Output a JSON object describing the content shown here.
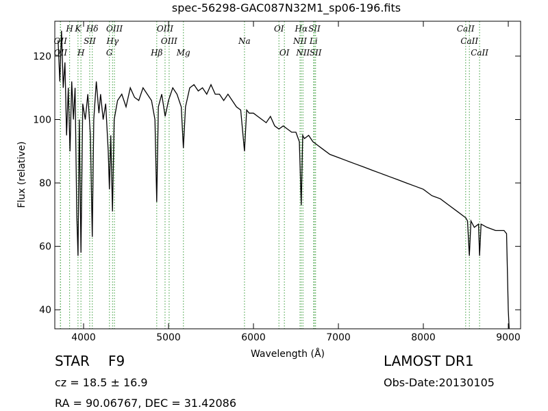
{
  "chart_data": {
    "type": "line",
    "title": "spec-56298-GAC087N32M1_sp06-196.fits",
    "x_label": "Wavelength (Å)",
    "y_label": "Flux (relative)",
    "color": "#000000",
    "annotation_color": "#55aa55",
    "xlim": [
      3661,
      9145
    ],
    "ylim": [
      34,
      131
    ],
    "xticks": [
      4000,
      5000,
      6000,
      7000,
      8000,
      9000
    ],
    "yticks": [
      40,
      60,
      80,
      100,
      120
    ],
    "x": [
      3700,
      3720,
      3740,
      3760,
      3780,
      3800,
      3820,
      3840,
      3860,
      3880,
      3900,
      3920,
      3934,
      3950,
      3969,
      3990,
      4020,
      4050,
      4080,
      4102,
      4120,
      4150,
      4180,
      4200,
      4230,
      4260,
      4290,
      4304,
      4320,
      4340,
      4360,
      4400,
      4450,
      4500,
      4550,
      4600,
      4650,
      4700,
      4750,
      4800,
      4840,
      4861,
      4880,
      4920,
      4960,
      5000,
      5050,
      5100,
      5150,
      5175,
      5200,
      5250,
      5300,
      5350,
      5400,
      5450,
      5500,
      5550,
      5600,
      5650,
      5700,
      5750,
      5800,
      5850,
      5894,
      5920,
      5950,
      6000,
      6050,
      6100,
      6150,
      6200,
      6250,
      6300,
      6350,
      6400,
      6450,
      6500,
      6540,
      6563,
      6580,
      6600,
      6650,
      6700,
      6750,
      6800,
      6850,
      6900,
      7000,
      7100,
      7200,
      7300,
      7400,
      7500,
      7600,
      7700,
      7800,
      7900,
      8000,
      8100,
      8200,
      8300,
      8400,
      8500,
      8520,
      8542,
      8560,
      8600,
      8650,
      8662,
      8680,
      8750,
      8850,
      8950,
      8980,
      9000,
      9010
    ],
    "values": [
      125,
      112,
      128,
      110,
      118,
      95,
      110,
      90,
      112,
      100,
      110,
      70,
      57,
      100,
      58,
      105,
      100,
      108,
      95,
      63,
      100,
      112,
      102,
      108,
      100,
      105,
      90,
      78,
      95,
      71,
      100,
      106,
      108,
      104,
      110,
      107,
      106,
      110,
      108,
      106,
      100,
      74,
      104,
      108,
      101,
      106,
      110,
      108,
      104,
      91,
      104,
      110,
      111,
      109,
      110,
      108,
      111,
      108,
      108,
      106,
      108,
      106,
      104,
      103,
      90,
      103,
      102,
      102,
      101,
      100,
      99,
      101,
      98,
      97,
      98,
      97,
      96,
      96,
      93,
      73,
      95,
      94,
      95,
      93,
      92,
      91,
      90,
      89,
      88,
      87,
      86,
      85,
      84,
      83,
      82,
      81,
      80,
      79,
      78,
      76,
      75,
      73,
      71,
      69,
      68,
      57,
      68,
      66,
      67,
      57,
      67,
      66,
      65,
      65,
      64,
      40,
      34
    ],
    "spectral_lines": [
      [
        {
          "label": "H",
          "wavelength": 3835
        },
        {
          "label": "K",
          "wavelength": 3934
        },
        {
          "label": "Hδ",
          "wavelength": 4102
        },
        {
          "label": "OIII",
          "wavelength": 4363
        },
        {
          "label": "OIII",
          "wavelength": 4959
        },
        {
          "label": "OI",
          "wavelength": 6300
        },
        {
          "label": "Hα",
          "wavelength": 6563
        },
        {
          "label": "SII",
          "wavelength": 6717
        },
        {
          "label": "CaII",
          "wavelength": 8498
        }
      ],
      [
        {
          "label": "OII",
          "wavelength": 3727
        },
        {
          "label": "SII",
          "wavelength": 4072
        },
        {
          "label": "Hγ",
          "wavelength": 4341
        },
        {
          "label": "OIII",
          "wavelength": 5007
        },
        {
          "label": "Na",
          "wavelength": 5894
        },
        {
          "label": "NII",
          "wavelength": 6548
        },
        {
          "label": "Li",
          "wavelength": 6708
        },
        {
          "label": "CaII",
          "wavelength": 8542
        }
      ],
      [
        {
          "label": "OII",
          "wavelength": 3729
        },
        {
          "label": "H",
          "wavelength": 3969
        },
        {
          "label": "G",
          "wavelength": 4304
        },
        {
          "label": "Hβ",
          "wavelength": 4861
        },
        {
          "label": "Mg",
          "wavelength": 5175
        },
        {
          "label": "OI",
          "wavelength": 6364
        },
        {
          "label": "NII",
          "wavelength": 6583
        },
        {
          "label": "SII",
          "wavelength": 6731
        },
        {
          "label": "CaII",
          "wavelength": 8662
        }
      ]
    ],
    "info": {
      "object_class": "STAR",
      "subclass": "F9",
      "redshift": "cz = 18.5  ± 16.9",
      "coordinates": "RA = 90.06767, DEC = 31.42086",
      "survey": "LAMOST DR1",
      "obs_date": "Obs-Date:20130105"
    }
  }
}
